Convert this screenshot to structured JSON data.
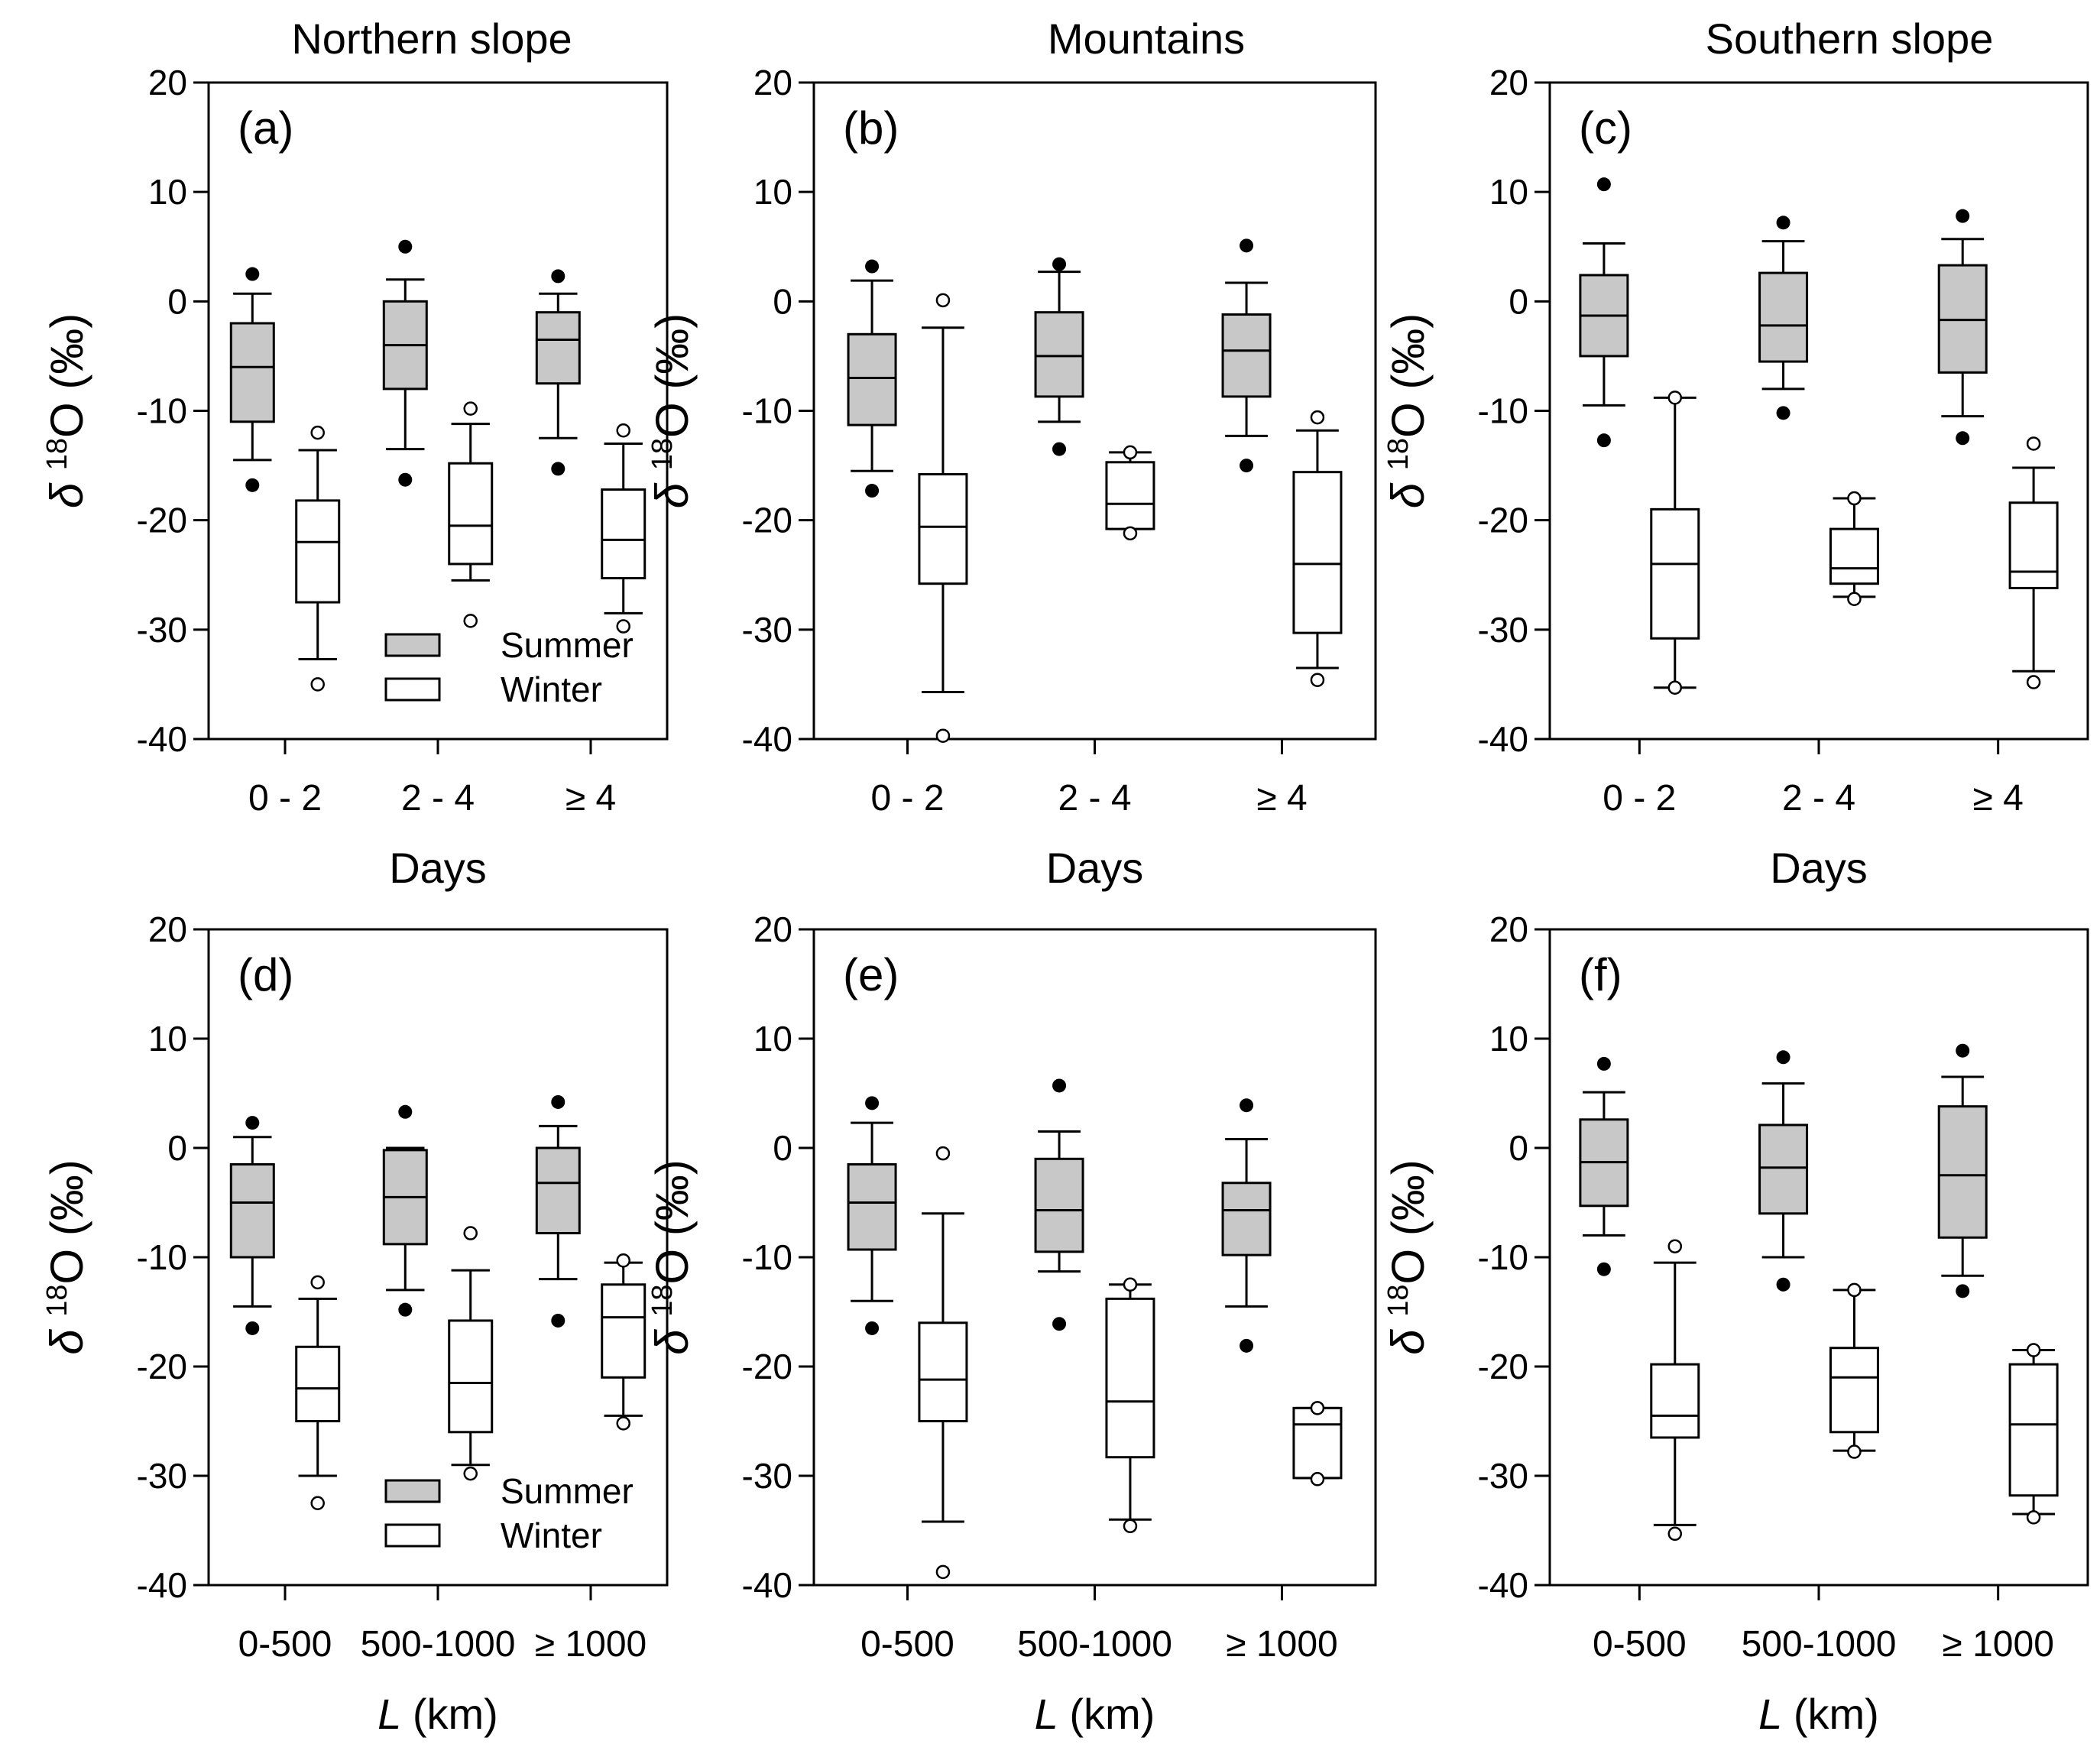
{
  "col_titles": [
    "Northern slope",
    "Mountains",
    "Southern slope"
  ],
  "chart_data": [
    {
      "type": "box",
      "panel": "(a)",
      "xlabel": "Days",
      "ylabel": "δ 18O (‰)",
      "ylim": [
        -40,
        20
      ],
      "yticks": [
        20,
        10,
        0,
        -10,
        -20,
        -30,
        -40
      ],
      "categories": [
        "0 - 2",
        "2 - 4",
        "≥ 4"
      ],
      "legend": {
        "position": "bottom-right",
        "entries": [
          "Summer",
          "Winter"
        ]
      },
      "series": [
        {
          "name": "Summer",
          "color": "#c8c8c8",
          "boxes": [
            {
              "whisker_low": -14.5,
              "q1": -11,
              "median": -6,
              "q3": -2,
              "whisker_high": 0.7,
              "outliers": [
                2.5,
                -16.8
              ]
            },
            {
              "whisker_low": -13.5,
              "q1": -8,
              "median": -4,
              "q3": 0,
              "whisker_high": 2,
              "outliers": [
                5,
                -16.3
              ]
            },
            {
              "whisker_low": -12.5,
              "q1": -7.5,
              "median": -3.5,
              "q3": -1,
              "whisker_high": 0.7,
              "outliers": [
                2.3,
                -15.3
              ]
            }
          ]
        },
        {
          "name": "Winter",
          "color": "#ffffff",
          "boxes": [
            {
              "whisker_low": -32.7,
              "q1": -27.5,
              "median": -22,
              "q3": -18.2,
              "whisker_high": -13.6,
              "outliers": [
                -12,
                -35
              ]
            },
            {
              "whisker_low": -25.5,
              "q1": -24,
              "median": -20.5,
              "q3": -14.8,
              "whisker_high": -11.2,
              "outliers": [
                -9.8,
                -29.2
              ]
            },
            {
              "whisker_low": -28.5,
              "q1": -25.3,
              "median": -21.8,
              "q3": -17.2,
              "whisker_high": -13,
              "outliers": [
                -11.8,
                -29.7
              ]
            }
          ]
        }
      ]
    },
    {
      "type": "box",
      "panel": "(b)",
      "xlabel": "Days",
      "ylabel": "δ 18O (‰)",
      "ylim": [
        -40,
        20
      ],
      "yticks": [
        20,
        10,
        0,
        -10,
        -20,
        -30,
        -40
      ],
      "categories": [
        "0 - 2",
        "2 - 4",
        "≥ 4"
      ],
      "series": [
        {
          "name": "Summer",
          "color": "#c8c8c8",
          "boxes": [
            {
              "whisker_low": -15.5,
              "q1": -11.3,
              "median": -7,
              "q3": -3,
              "whisker_high": 1.9,
              "outliers": [
                3.2,
                -17.3
              ]
            },
            {
              "whisker_low": -11,
              "q1": -8.7,
              "median": -5,
              "q3": -1,
              "whisker_high": 2.7,
              "outliers": [
                3.4,
                -13.5
              ]
            },
            {
              "whisker_low": -12.3,
              "q1": -8.7,
              "median": -4.5,
              "q3": -1.2,
              "whisker_high": 1.7,
              "outliers": [
                5.1,
                -15
              ]
            }
          ]
        },
        {
          "name": "Winter",
          "color": "#ffffff",
          "boxes": [
            {
              "whisker_low": -35.7,
              "q1": -25.8,
              "median": -20.6,
              "q3": -15.8,
              "whisker_high": -2.4,
              "outliers": [
                0.1,
                -39.7
              ]
            },
            {
              "whisker_low": -20.8,
              "q1": -20.8,
              "median": -18.5,
              "q3": -14.7,
              "whisker_high": -13.8,
              "outliers": [
                -13.8,
                -21.2
              ]
            },
            {
              "whisker_low": -33.5,
              "q1": -30.3,
              "median": -24,
              "q3": -15.6,
              "whisker_high": -11.8,
              "outliers": [
                -10.6,
                -34.6
              ]
            }
          ]
        }
      ]
    },
    {
      "type": "box",
      "panel": "(c)",
      "xlabel": "Days",
      "ylabel": "δ 18O (‰)",
      "ylim": [
        -40,
        20
      ],
      "yticks": [
        20,
        10,
        0,
        -10,
        -20,
        -30,
        -40
      ],
      "categories": [
        "0 - 2",
        "2 - 4",
        "≥ 4"
      ],
      "series": [
        {
          "name": "Summer",
          "color": "#c8c8c8",
          "boxes": [
            {
              "whisker_low": -9.5,
              "q1": -5,
              "median": -1.3,
              "q3": 2.4,
              "whisker_high": 5.3,
              "outliers": [
                10.7,
                -12.7
              ]
            },
            {
              "whisker_low": -8,
              "q1": -5.5,
              "median": -2.2,
              "q3": 2.6,
              "whisker_high": 5.5,
              "outliers": [
                7.2,
                -10.2
              ]
            },
            {
              "whisker_low": -10.5,
              "q1": -6.5,
              "median": -1.7,
              "q3": 3.3,
              "whisker_high": 5.7,
              "outliers": [
                7.8,
                -12.5
              ]
            }
          ]
        },
        {
          "name": "Winter",
          "color": "#ffffff",
          "boxes": [
            {
              "whisker_low": -35.3,
              "q1": -30.8,
              "median": -24,
              "q3": -19,
              "whisker_high": -8.8,
              "outliers": [
                -8.8,
                -35.3
              ]
            },
            {
              "whisker_low": -27,
              "q1": -25.8,
              "median": -24.4,
              "q3": -20.8,
              "whisker_high": -18,
              "outliers": [
                -18,
                -27.2
              ]
            },
            {
              "whisker_low": -33.8,
              "q1": -26.2,
              "median": -24.7,
              "q3": -18.4,
              "whisker_high": -15.2,
              "outliers": [
                -13,
                -34.8
              ]
            }
          ]
        }
      ]
    },
    {
      "type": "box",
      "panel": "(d)",
      "xlabel": "L (km)",
      "ylabel": "δ 18O (‰)",
      "ylim": [
        -40,
        20
      ],
      "yticks": [
        20,
        10,
        0,
        -10,
        -20,
        -30,
        -40
      ],
      "categories": [
        "0-500",
        "500-1000",
        "≥ 1000"
      ],
      "legend": {
        "position": "bottom-right",
        "entries": [
          "Summer",
          "Winter"
        ]
      },
      "series": [
        {
          "name": "Summer",
          "color": "#c8c8c8",
          "boxes": [
            {
              "whisker_low": -14.5,
              "q1": -10,
              "median": -5,
              "q3": -1.5,
              "whisker_high": 1,
              "outliers": [
                2.3,
                -16.5
              ]
            },
            {
              "whisker_low": -13,
              "q1": -8.8,
              "median": -4.5,
              "q3": -0.2,
              "whisker_high": 0,
              "outliers": [
                3.3,
                -14.8
              ]
            },
            {
              "whisker_low": -12,
              "q1": -7.8,
              "median": -3.2,
              "q3": 0,
              "whisker_high": 2,
              "outliers": [
                4.2,
                -15.8
              ]
            }
          ]
        },
        {
          "name": "Winter",
          "color": "#ffffff",
          "boxes": [
            {
              "whisker_low": -30,
              "q1": -25,
              "median": -22,
              "q3": -18.2,
              "whisker_high": -13.8,
              "outliers": [
                -12.3,
                -32.5
              ]
            },
            {
              "whisker_low": -29,
              "q1": -26,
              "median": -21.5,
              "q3": -15.8,
              "whisker_high": -11.2,
              "outliers": [
                -7.8,
                -29.8
              ]
            },
            {
              "whisker_low": -24.5,
              "q1": -21,
              "median": -15.5,
              "q3": -12.5,
              "whisker_high": -10.5,
              "outliers": [
                -10.3,
                -25.2
              ]
            }
          ]
        }
      ]
    },
    {
      "type": "box",
      "panel": "(e)",
      "xlabel": "L (km)",
      "ylabel": "δ 18O (‰)",
      "ylim": [
        -40,
        20
      ],
      "yticks": [
        20,
        10,
        0,
        -10,
        -20,
        -30,
        -40
      ],
      "categories": [
        "0-500",
        "500-1000",
        "≥ 1000"
      ],
      "series": [
        {
          "name": "Summer",
          "color": "#c8c8c8",
          "boxes": [
            {
              "whisker_low": -14,
              "q1": -9.3,
              "median": -5,
              "q3": -1.5,
              "whisker_high": 2.3,
              "outliers": [
                4.1,
                -16.5
              ]
            },
            {
              "whisker_low": -11.3,
              "q1": -9.5,
              "median": -5.7,
              "q3": -1,
              "whisker_high": 1.5,
              "outliers": [
                5.7,
                -16.1
              ]
            },
            {
              "whisker_low": -14.5,
              "q1": -9.8,
              "median": -5.7,
              "q3": -3.2,
              "whisker_high": 0.8,
              "outliers": [
                3.9,
                -18.1
              ]
            }
          ]
        },
        {
          "name": "Winter",
          "color": "#ffffff",
          "boxes": [
            {
              "whisker_low": -34.2,
              "q1": -25,
              "median": -21.2,
              "q3": -16,
              "whisker_high": -6,
              "outliers": [
                -0.5,
                -38.8
              ]
            },
            {
              "whisker_low": -34,
              "q1": -28.3,
              "median": -23.2,
              "q3": -13.8,
              "whisker_high": -12.5,
              "outliers": [
                -12.5,
                -34.6
              ]
            },
            {
              "whisker_low": -30.2,
              "q1": -30.2,
              "median": -25.3,
              "q3": -23.8,
              "whisker_high": -23.8,
              "outliers": [
                -23.8,
                -30.3
              ]
            }
          ]
        }
      ]
    },
    {
      "type": "box",
      "panel": "(f)",
      "xlabel": "L (km)",
      "ylabel": "δ 18O (‰)",
      "ylim": [
        -40,
        20
      ],
      "yticks": [
        20,
        10,
        0,
        -10,
        -20,
        -30,
        -40
      ],
      "categories": [
        "0-500",
        "500-1000",
        "≥ 1000"
      ],
      "series": [
        {
          "name": "Summer",
          "color": "#c8c8c8",
          "boxes": [
            {
              "whisker_low": -8,
              "q1": -5.3,
              "median": -1.3,
              "q3": 2.6,
              "whisker_high": 5.1,
              "outliers": [
                7.7,
                -11.1
              ]
            },
            {
              "whisker_low": -10,
              "q1": -6,
              "median": -1.8,
              "q3": 2.1,
              "whisker_high": 5.9,
              "outliers": [
                8.3,
                -12.5
              ]
            },
            {
              "whisker_low": -11.7,
              "q1": -8.2,
              "median": -2.5,
              "q3": 3.8,
              "whisker_high": 6.5,
              "outliers": [
                8.9,
                -13.1
              ]
            }
          ]
        },
        {
          "name": "Winter",
          "color": "#ffffff",
          "boxes": [
            {
              "whisker_low": -34.5,
              "q1": -26.5,
              "median": -24.5,
              "q3": -19.8,
              "whisker_high": -10.5,
              "outliers": [
                -9,
                -35.3
              ]
            },
            {
              "whisker_low": -27.7,
              "q1": -26,
              "median": -21,
              "q3": -18.3,
              "whisker_high": -13,
              "outliers": [
                -13,
                -27.8
              ]
            },
            {
              "whisker_low": -33.5,
              "q1": -31.8,
              "median": -25.3,
              "q3": -19.8,
              "whisker_high": -18.5,
              "outliers": [
                -18.5,
                -33.8
              ]
            }
          ]
        }
      ]
    }
  ]
}
